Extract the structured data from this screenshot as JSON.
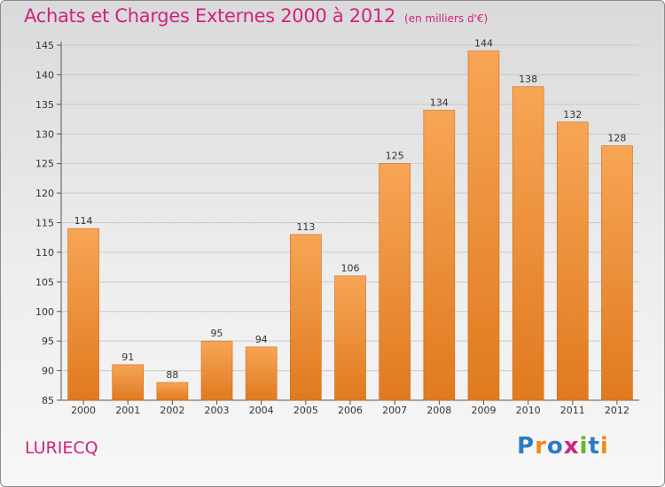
{
  "chart_data": {
    "type": "bar",
    "title": "Achats et Charges Externes 2000 à 2012",
    "subtitle": "(en milliers d'€)",
    "categories": [
      "2000",
      "2001",
      "2002",
      "2003",
      "2004",
      "2005",
      "2006",
      "2007",
      "2008",
      "2009",
      "2010",
      "2011",
      "2012"
    ],
    "values": [
      114,
      91,
      88,
      95,
      94,
      113,
      106,
      125,
      134,
      144,
      138,
      132,
      128
    ],
    "ylim": [
      85,
      145
    ],
    "yticks": [
      85,
      90,
      95,
      100,
      105,
      110,
      115,
      120,
      125,
      130,
      135,
      140,
      145
    ],
    "grid": true,
    "bar_color_top": "#f7a556",
    "bar_color_bottom": "#e07a1f"
  },
  "footer": {
    "place": "LURIECQ",
    "logo_letters": [
      "P",
      "r",
      "o",
      "x",
      "i",
      "t",
      "i"
    ],
    "logo_colors": [
      "#2e7bc4",
      "#f08a1c",
      "#2e7bc4",
      "#d0237f",
      "#6ab42d",
      "#2e7bc4",
      "#f08a1c"
    ]
  },
  "colors": {
    "accent": "#d0237f"
  }
}
